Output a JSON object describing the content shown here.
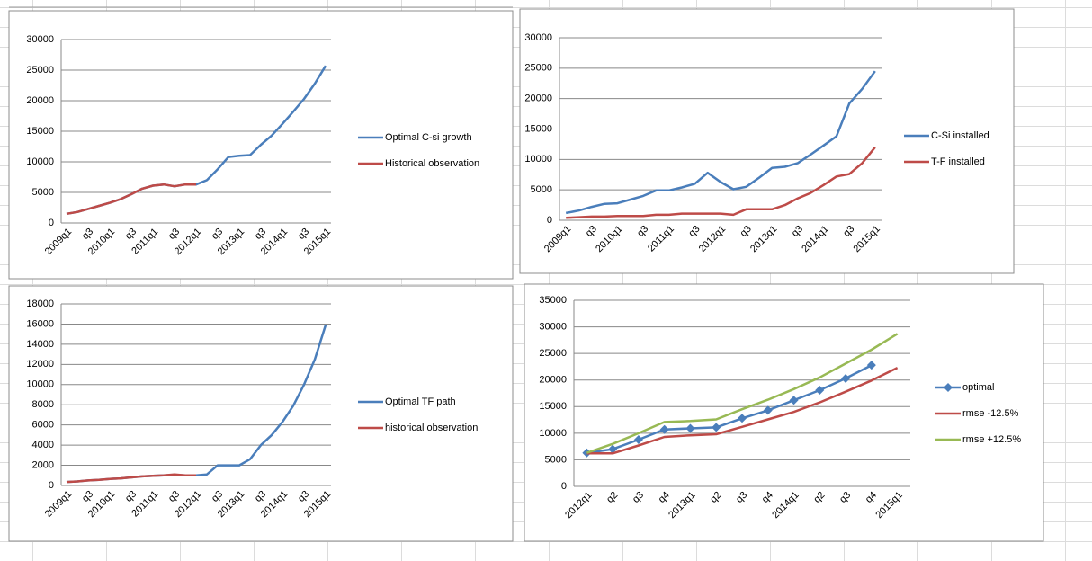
{
  "chart_data": [
    {
      "type": "line",
      "categories": [
        "2009q1",
        null,
        "q3",
        null,
        "2010q1",
        null,
        "q3",
        null,
        "2011q1",
        null,
        "q3",
        null,
        "2012q1",
        null,
        "q3",
        null,
        "2013q1",
        null,
        "q3",
        null,
        "2014q1",
        null,
        "q3",
        null,
        "2015q1"
      ],
      "series": [
        {
          "name": "Optimal C-si growth",
          "color": "#4a7ebb",
          "values": [
            1500,
            1800,
            2300,
            2800,
            3300,
            3900,
            4700,
            5600,
            6100,
            6300,
            6000,
            6300,
            6300,
            7000,
            8800,
            10800,
            11000,
            11100,
            12800,
            14300,
            16200,
            18200,
            20300,
            22800,
            25700
          ]
        },
        {
          "name": "Historical observation",
          "color": "#be4b48",
          "values": [
            1500,
            1800,
            2300,
            2800,
            3300,
            3900,
            4700,
            5600,
            6100,
            6300,
            6000,
            6300,
            6300,
            null,
            null,
            null,
            null,
            null,
            null,
            null,
            null,
            null,
            null,
            null,
            null
          ]
        }
      ],
      "ylim": [
        0,
        30000
      ],
      "yticks": [
        0,
        5000,
        10000,
        15000,
        20000,
        25000,
        30000
      ],
      "grid": true,
      "legend": "right"
    },
    {
      "type": "line",
      "categories": [
        "2009q1",
        null,
        "q3",
        null,
        "2010q1",
        null,
        "q3",
        null,
        "2011q1",
        null,
        "q3",
        null,
        "2012q1",
        null,
        "q3",
        null,
        "2013q1",
        null,
        "q3",
        null,
        "2014q1",
        null,
        "q3",
        null,
        "2015q1"
      ],
      "series": [
        {
          "name": "C-Si installed",
          "color": "#4a7ebb",
          "values": [
            1200,
            1600,
            2200,
            2700,
            2800,
            3400,
            4000,
            4900,
            4900,
            5400,
            6000,
            7800,
            6300,
            5100,
            5500,
            7000,
            8600,
            8800,
            9400,
            10800,
            12300,
            13800,
            19200,
            21600,
            24500
          ]
        },
        {
          "name": "T-F installed",
          "color": "#be4b48",
          "values": [
            400,
            500,
            600,
            600,
            700,
            700,
            700,
            900,
            900,
            1100,
            1100,
            1100,
            1100,
            900,
            1800,
            1800,
            1800,
            2500,
            3600,
            4500,
            5800,
            7200,
            7600,
            9400,
            12000
          ]
        }
      ],
      "ylim": [
        0,
        30000
      ],
      "yticks": [
        0,
        5000,
        10000,
        15000,
        20000,
        25000,
        30000
      ],
      "grid": true,
      "legend": "right"
    },
    {
      "type": "line",
      "categories": [
        "2009q1",
        null,
        "q3",
        null,
        "2010q1",
        null,
        "q3",
        null,
        "2011q1",
        null,
        "q3",
        null,
        "2012q1",
        null,
        "q3",
        null,
        "2013q1",
        null,
        "q3",
        null,
        "2014q1",
        null,
        "q3",
        null,
        "2015q1"
      ],
      "series": [
        {
          "name": "Optimal TF path",
          "color": "#4a7ebb",
          "values": [
            350,
            400,
            500,
            550,
            650,
            700,
            800,
            900,
            950,
            1000,
            1050,
            1000,
            1000,
            1100,
            2000,
            2000,
            2000,
            2600,
            4000,
            5000,
            6300,
            7900,
            10000,
            12500,
            15900
          ]
        },
        {
          "name": "historical observation",
          "color": "#be4b48",
          "values": [
            350,
            400,
            500,
            550,
            650,
            700,
            800,
            900,
            950,
            1000,
            1100,
            1000,
            1000,
            null,
            null,
            null,
            null,
            null,
            null,
            null,
            null,
            null,
            null,
            null,
            null
          ]
        }
      ],
      "ylim": [
        0,
        18000
      ],
      "yticks": [
        0,
        2000,
        4000,
        6000,
        8000,
        10000,
        12000,
        14000,
        16000,
        18000
      ],
      "grid": true,
      "legend": "right"
    },
    {
      "type": "line",
      "categories": [
        "2012q1",
        "q2",
        "q3",
        "q4",
        "2013q1",
        "q2",
        "q3",
        "q4",
        "2014q1",
        "q2",
        "q3",
        "q4",
        "2015q1"
      ],
      "series": [
        {
          "name": "optimal",
          "color": "#4a7ebb",
          "marker": "diamond",
          "values": [
            6300,
            7000,
            8800,
            10700,
            10900,
            11100,
            12800,
            14300,
            16200,
            18100,
            20300,
            22800,
            null
          ]
        },
        {
          "name": "rmse -12.5%",
          "color": "#be4b48",
          "values": [
            6200,
            6200,
            7700,
            9300,
            9600,
            9800,
            11200,
            12600,
            14000,
            15800,
            17800,
            19900,
            22300
          ]
        },
        {
          "name": "rmse +12.5%",
          "color": "#98b954",
          "values": [
            6300,
            8000,
            10000,
            12100,
            12300,
            12600,
            14500,
            16300,
            18300,
            20500,
            23100,
            25700,
            28700
          ]
        }
      ],
      "ylim": [
        0,
        35000
      ],
      "yticks": [
        0,
        5000,
        10000,
        15000,
        20000,
        25000,
        30000,
        35000
      ],
      "grid": true,
      "legend": "right"
    }
  ]
}
